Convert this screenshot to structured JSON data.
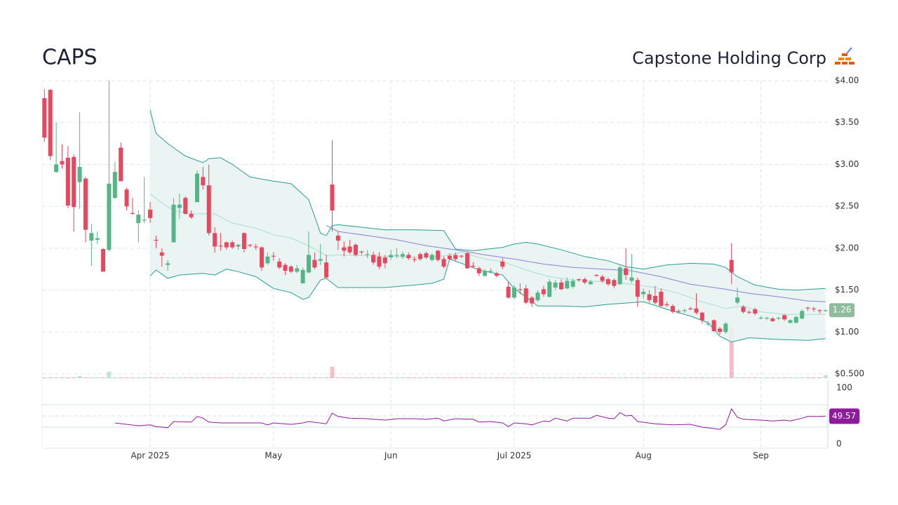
{
  "header": {
    "ticker": "CAPS",
    "company": "Capstone Holding Corp"
  },
  "chart_data": [
    {
      "type": "candlestick",
      "xlim": [
        -0.4,
        133.4
      ],
      "xticks": [
        {
          "value": 18,
          "label": "Apr 2025"
        },
        {
          "value": 39,
          "label": "May"
        },
        {
          "value": 59,
          "label": "Jun"
        },
        {
          "value": 80,
          "label": "Jul 2025"
        },
        {
          "value": 102,
          "label": "Aug"
        },
        {
          "value": 122,
          "label": "Sep"
        }
      ],
      "ylim": [
        0.5,
        4.0
      ],
      "yticks": [
        {
          "value": 4.0,
          "label": "$4.00"
        },
        {
          "value": 3.5,
          "label": "$3.50"
        },
        {
          "value": 3.0,
          "label": "$3.00"
        },
        {
          "value": 2.5,
          "label": "$2.50"
        },
        {
          "value": 2.0,
          "label": "$2.00"
        },
        {
          "value": 1.5,
          "label": "$1.50"
        },
        {
          "value": 1.0,
          "label": "$1.00"
        },
        {
          "value": 0.5,
          "label": "$0.500"
        }
      ],
      "grid": true,
      "up_color": "#55b587",
      "down_color": "#e5485f",
      "open": [
        3.79,
        3.89,
        2.91,
        3.04,
        3.08,
        3.09,
        2.79,
        2.83,
        2.09,
        2.1,
        1.99,
        1.98,
        2.6,
        3.2,
        2.7,
        2.42,
        2.3,
        2.33,
        2.46,
        2.1,
        1.95,
        1.8,
        2.07,
        2.48,
        2.6,
        2.41,
        2.55,
        2.85,
        2.75,
        2.18,
        2.03,
        2.07,
        2.07,
        2.02,
        2.18,
        2.04,
        2.02,
        2.01,
        1.82,
        1.91,
        1.84,
        1.8,
        1.78,
        1.72,
        1.58,
        1.71,
        1.86,
        1.85,
        1.83,
        2.76,
        2.15,
        2.01,
        2.02,
        2.04,
        1.96,
        1.92,
        1.92,
        1.9,
        1.89,
        1.89,
        1.91,
        1.9,
        1.92,
        1.87,
        1.93,
        1.94,
        1.86,
        1.97,
        1.87,
        1.91,
        1.92,
        1.91,
        1.94,
        1.79,
        1.76,
        1.67,
        1.72,
        1.7,
        1.84,
        1.54,
        1.41,
        1.51,
        1.52,
        1.41,
        1.38,
        1.51,
        1.42,
        1.53,
        1.59,
        1.52,
        1.54,
        1.63,
        1.63,
        1.57,
        1.68,
        1.66,
        1.63,
        1.62,
        1.57,
        1.76,
        1.61,
        1.62,
        1.45,
        1.45,
        1.43,
        1.48,
        1.33,
        1.31,
        1.25,
        1.25,
        1.28,
        1.28,
        1.23,
        1.09,
        1.14,
        1.04,
        1.0,
        1.86,
        1.35,
        1.3,
        1.24,
        1.27,
        1.16,
        1.16,
        1.16,
        1.16,
        1.2,
        1.11,
        1.11,
        1.16,
        1.29,
        1.28,
        1.26,
        1.25
      ],
      "high": [
        3.9,
        3.9,
        3.5,
        3.24,
        3.22,
        3.12,
        3.62,
        2.85,
        2.29,
        2.2,
        2.0,
        4.0,
        3.03,
        3.26,
        2.72,
        2.6,
        2.45,
        2.85,
        2.55,
        2.15,
        2.0,
        1.86,
        2.6,
        2.65,
        2.62,
        2.45,
        2.93,
        2.97,
        3.0,
        2.25,
        2.18,
        2.08,
        2.09,
        2.05,
        2.19,
        2.05,
        2.05,
        2.02,
        1.95,
        1.95,
        1.88,
        1.82,
        1.8,
        1.8,
        1.77,
        2.2,
        1.95,
        2.05,
        1.92,
        3.29,
        2.2,
        2.08,
        2.1,
        2.06,
        1.97,
        1.98,
        1.96,
        1.95,
        1.92,
        1.98,
        2.0,
        1.96,
        1.95,
        1.9,
        1.95,
        1.96,
        1.94,
        1.98,
        1.9,
        1.94,
        1.95,
        1.92,
        1.96,
        1.83,
        1.78,
        1.75,
        1.76,
        1.72,
        1.88,
        1.6,
        1.56,
        1.58,
        1.56,
        1.43,
        1.5,
        1.55,
        1.63,
        1.62,
        1.63,
        1.65,
        1.64,
        1.64,
        1.65,
        1.62,
        1.69,
        1.68,
        1.65,
        1.64,
        1.79,
        2.0,
        1.93,
        1.65,
        1.52,
        1.5,
        1.55,
        1.52,
        1.36,
        1.33,
        1.27,
        1.28,
        1.3,
        1.46,
        1.24,
        1.13,
        1.15,
        1.06,
        1.12,
        2.06,
        1.53,
        1.32,
        1.26,
        1.29,
        1.19,
        1.18,
        1.18,
        1.18,
        1.21,
        1.15,
        1.19,
        1.27,
        1.3,
        1.3,
        1.27,
        1.27
      ],
      "low": [
        3.27,
        3.05,
        2.9,
        2.95,
        2.48,
        2.2,
        2.47,
        2.07,
        1.79,
        2.05,
        1.72,
        1.96,
        2.59,
        2.8,
        2.45,
        2.4,
        2.07,
        2.3,
        2.3,
        2.0,
        1.78,
        1.73,
        2.07,
        2.35,
        2.4,
        2.35,
        2.55,
        2.7,
        2.15,
        1.95,
        1.97,
        1.98,
        1.99,
        1.98,
        1.95,
        2.01,
        1.98,
        1.73,
        1.8,
        1.85,
        1.75,
        1.68,
        1.7,
        1.7,
        1.58,
        1.7,
        1.75,
        1.8,
        1.63,
        2.2,
        1.98,
        1.9,
        1.93,
        1.9,
        1.92,
        1.88,
        1.8,
        1.75,
        1.76,
        1.86,
        1.88,
        1.87,
        1.86,
        1.83,
        1.85,
        1.87,
        1.84,
        1.84,
        1.76,
        1.86,
        1.85,
        1.88,
        1.75,
        1.76,
        1.67,
        1.66,
        1.7,
        1.65,
        1.75,
        1.4,
        1.39,
        1.45,
        1.33,
        1.3,
        1.36,
        1.42,
        1.41,
        1.5,
        1.5,
        1.51,
        1.52,
        1.6,
        1.57,
        1.56,
        1.66,
        1.59,
        1.55,
        1.52,
        1.56,
        1.62,
        1.58,
        1.3,
        1.4,
        1.35,
        1.33,
        1.3,
        1.3,
        1.22,
        1.22,
        1.23,
        1.26,
        1.21,
        1.1,
        1.07,
        1.0,
        0.97,
        0.98,
        1.57,
        1.33,
        1.22,
        1.21,
        1.2,
        1.15,
        1.14,
        1.12,
        1.14,
        1.13,
        1.1,
        1.1,
        1.15,
        1.25,
        1.24,
        1.22,
        1.24
      ],
      "close": [
        3.32,
        3.1,
        3.0,
        3.0,
        2.51,
        2.49,
        2.97,
        2.22,
        2.18,
        2.12,
        1.72,
        2.77,
        2.91,
        2.8,
        2.5,
        2.41,
        2.4,
        2.34,
        2.36,
        2.09,
        1.91,
        1.82,
        2.52,
        2.52,
        2.41,
        2.37,
        2.89,
        2.75,
        2.18,
        2.02,
        2.02,
        2.01,
        2.01,
        2.04,
        1.99,
        2.03,
        2.01,
        1.77,
        1.9,
        1.9,
        1.77,
        1.73,
        1.72,
        1.76,
        1.74,
        1.92,
        1.77,
        1.87,
        1.65,
        2.45,
        2.09,
        1.97,
        1.95,
        1.92,
        1.95,
        1.93,
        1.83,
        1.78,
        1.82,
        1.92,
        1.92,
        1.93,
        1.88,
        1.86,
        1.87,
        1.89,
        1.92,
        1.86,
        1.78,
        1.87,
        1.87,
        1.9,
        1.76,
        1.78,
        1.7,
        1.73,
        1.73,
        1.67,
        1.78,
        1.41,
        1.53,
        1.5,
        1.35,
        1.34,
        1.47,
        1.45,
        1.6,
        1.59,
        1.51,
        1.61,
        1.61,
        1.62,
        1.59,
        1.6,
        1.67,
        1.61,
        1.57,
        1.55,
        1.77,
        1.68,
        1.65,
        1.42,
        1.48,
        1.38,
        1.35,
        1.31,
        1.32,
        1.24,
        1.24,
        1.26,
        1.27,
        1.23,
        1.14,
        1.1,
        1.01,
        1.0,
        1.1,
        1.71,
        1.41,
        1.24,
        1.23,
        1.22,
        1.17,
        1.17,
        1.13,
        1.17,
        1.15,
        1.14,
        1.18,
        1.25,
        1.28,
        1.27,
        1.25,
        1.26
      ],
      "volume": [
        1,
        1,
        1,
        1,
        1,
        1,
        3,
        1,
        1,
        1,
        1,
        9,
        1,
        1,
        1,
        1,
        1,
        1,
        1,
        1,
        1,
        1,
        1,
        1,
        1,
        1,
        1,
        1,
        1,
        1,
        1,
        1,
        1,
        1,
        1,
        1,
        1,
        1,
        1,
        1,
        1,
        1,
        1,
        1,
        1,
        1,
        1,
        1,
        1,
        16,
        1,
        1,
        1,
        1,
        1,
        1,
        1,
        1,
        1,
        1,
        1,
        1,
        1,
        1,
        1,
        1,
        1,
        1,
        1,
        1,
        1,
        1,
        1,
        1,
        1,
        1,
        1,
        1,
        1,
        1,
        1,
        1,
        1,
        1,
        1,
        1,
        1,
        1,
        1,
        1,
        1,
        1,
        1,
        1,
        1,
        1,
        1,
        1,
        1,
        1,
        1,
        1,
        1,
        1,
        1,
        1,
        1,
        1,
        1,
        1,
        1,
        1,
        1,
        1,
        1,
        1,
        1,
        72,
        1,
        1,
        1,
        1,
        1,
        1,
        1,
        1,
        1,
        1,
        1,
        1,
        1,
        1,
        1,
        4
      ],
      "volume_lim": [
        0,
        100
      ],
      "band_fill": "#e6f3f1",
      "overlays": [
        {
          "color": "#2a9d8f",
          "x": [
            18,
            19,
            21,
            24,
            27,
            28,
            30,
            32,
            35,
            39,
            42,
            45,
            47,
            48,
            49,
            50,
            54,
            58,
            63,
            68,
            70,
            73,
            78,
            80,
            82,
            84,
            88,
            92,
            96,
            99,
            102,
            106,
            110,
            114,
            116,
            118,
            121,
            125,
            128,
            133
          ],
          "values": [
            3.65,
            3.37,
            3.25,
            3.1,
            3.02,
            3.07,
            3.08,
            3.0,
            2.85,
            2.8,
            2.77,
            2.58,
            2.18,
            2.15,
            2.27,
            2.28,
            2.25,
            2.22,
            2.22,
            2.21,
            1.99,
            1.97,
            2.01,
            2.05,
            2.07,
            2.05,
            1.98,
            1.9,
            1.85,
            1.78,
            1.75,
            1.8,
            1.82,
            1.81,
            1.77,
            1.66,
            1.56,
            1.51,
            1.5,
            1.52
          ]
        },
        {
          "color": "#2a9d8f",
          "x": [
            18,
            19,
            21,
            23,
            27,
            29,
            31,
            33,
            36,
            39,
            42,
            44,
            45,
            47,
            48,
            50,
            54,
            58,
            63,
            66,
            68,
            69,
            71,
            74,
            78,
            80,
            84,
            88,
            92,
            96,
            100,
            102,
            106,
            110,
            113,
            115,
            117,
            120,
            125,
            130,
            133
          ],
          "values": [
            1.67,
            1.74,
            1.64,
            1.68,
            1.7,
            1.68,
            1.75,
            1.72,
            1.66,
            1.52,
            1.47,
            1.39,
            1.41,
            1.62,
            1.64,
            1.53,
            1.53,
            1.53,
            1.56,
            1.58,
            1.63,
            1.87,
            1.82,
            1.74,
            1.68,
            1.52,
            1.31,
            1.31,
            1.3,
            1.33,
            1.35,
            1.36,
            1.27,
            1.19,
            1.11,
            0.95,
            0.88,
            0.93,
            0.91,
            0.9,
            0.92
          ]
        },
        {
          "color": "#a9dccf",
          "x": [
            18,
            20,
            22,
            25,
            29,
            32,
            36,
            39,
            42,
            45,
            48,
            50,
            55,
            60,
            65,
            68,
            71,
            75,
            78,
            82,
            86,
            90,
            95,
            100,
            104,
            108,
            112,
            116,
            119,
            122,
            126,
            130,
            133
          ],
          "values": [
            2.65,
            2.54,
            2.45,
            2.41,
            2.41,
            2.3,
            2.24,
            2.16,
            2.12,
            2.03,
            1.91,
            1.92,
            1.91,
            1.9,
            1.89,
            1.91,
            1.95,
            1.87,
            1.84,
            1.74,
            1.66,
            1.62,
            1.6,
            1.57,
            1.53,
            1.46,
            1.36,
            1.28,
            1.31,
            1.24,
            1.21,
            1.21,
            1.21
          ]
        },
        {
          "color": "#8a80d2",
          "x": [
            48,
            50,
            55,
            60,
            65,
            70,
            75,
            80,
            85,
            90,
            95,
            100,
            105,
            110,
            116,
            120,
            125,
            130,
            133
          ],
          "values": [
            2.27,
            2.2,
            2.15,
            2.1,
            2.03,
            1.98,
            1.92,
            1.87,
            1.81,
            1.77,
            1.75,
            1.73,
            1.66,
            1.57,
            1.51,
            1.46,
            1.42,
            1.37,
            1.36
          ]
        }
      ],
      "last_label_color": "#8fbc9a"
    },
    {
      "type": "line",
      "xlim": [
        -0.4,
        133.4
      ],
      "ylim": [
        0,
        100
      ],
      "yticks": [
        0,
        100
      ],
      "levels": [
        30,
        50,
        70
      ],
      "color": "#8e1a9e",
      "x": [
        12,
        14,
        16,
        18,
        19,
        21,
        22,
        25,
        26,
        27,
        28,
        30,
        37,
        38,
        39,
        42,
        44,
        45,
        48,
        49,
        50,
        52,
        55,
        58,
        60,
        63,
        65,
        67,
        68,
        70,
        73,
        74,
        76,
        78,
        79,
        80,
        82,
        83,
        85,
        86,
        87,
        89,
        90,
        93,
        94,
        96,
        97,
        98,
        99,
        100,
        101,
        104,
        107,
        110,
        112,
        114,
        115,
        116,
        117,
        118,
        119,
        122,
        124,
        126,
        127,
        129,
        130,
        132,
        133
      ],
      "values": [
        37.5,
        35,
        32.5,
        34,
        31,
        29,
        40,
        39,
        49,
        46,
        39,
        37.5,
        37.5,
        34,
        37.5,
        35,
        37.5,
        40,
        36,
        55,
        49,
        46,
        45,
        42.5,
        45,
        45,
        44,
        46,
        41,
        45,
        44,
        39,
        40,
        37.5,
        31,
        37.5,
        36,
        34,
        41,
        40,
        46,
        41,
        46,
        46,
        51,
        46,
        45,
        56,
        50,
        51,
        40,
        36,
        34,
        35,
        30,
        27.5,
        26,
        34,
        62.5,
        47.5,
        44,
        42.5,
        41,
        42.5,
        41,
        46,
        49,
        49,
        49.57
      ]
    }
  ]
}
